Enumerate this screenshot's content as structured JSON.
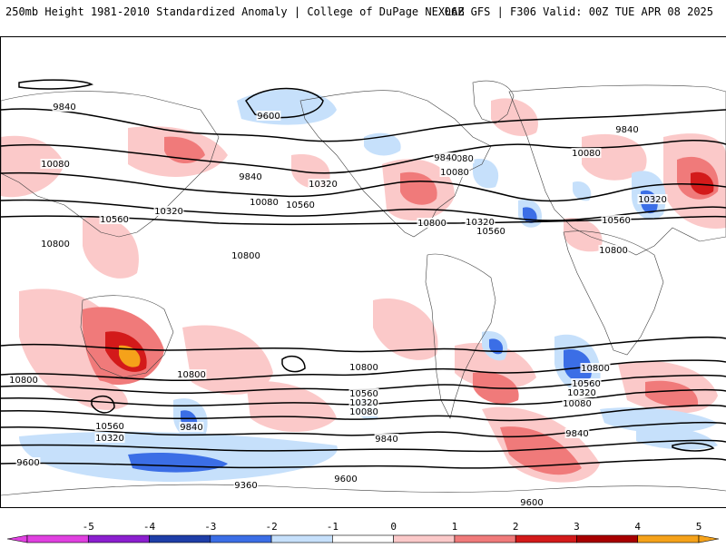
{
  "header": {
    "left_title": "250mb Height 1981-2010 Standardized Anomaly | College of DuPage NEXLAB",
    "right_title": "06Z GFS | F306 Valid: 00Z TUE APR 08 2025"
  },
  "colorbar": {
    "ticks": [
      "-5",
      "-4",
      "-3",
      "-2",
      "-1",
      "0",
      "1",
      "2",
      "3",
      "4",
      "5"
    ],
    "colors": [
      "#e040e0",
      "#8b1fcf",
      "#1e3ea8",
      "#3b6ee6",
      "#c6e0fb",
      "#ffffff",
      "#fbc9c9",
      "#f07a7a",
      "#d31a1a",
      "#a80000",
      "#f5a21a"
    ]
  },
  "contour_labels": [
    "9840",
    "9600",
    "9840",
    "10080",
    "10080",
    "10320",
    "10560",
    "10080",
    "10560",
    "10320",
    "10800",
    "10800",
    "9840",
    "10080",
    "10800",
    "10320",
    "10560",
    "9840",
    "10080",
    "10320",
    "10560",
    "10800",
    "10800",
    "10800",
    "10800",
    "10560",
    "10320",
    "10080",
    "9840",
    "10800",
    "10560",
    "10320",
    "10080",
    "9840",
    "10560",
    "10320",
    "9840",
    "9600",
    "9360",
    "9600",
    "9600",
    "9360"
  ]
}
